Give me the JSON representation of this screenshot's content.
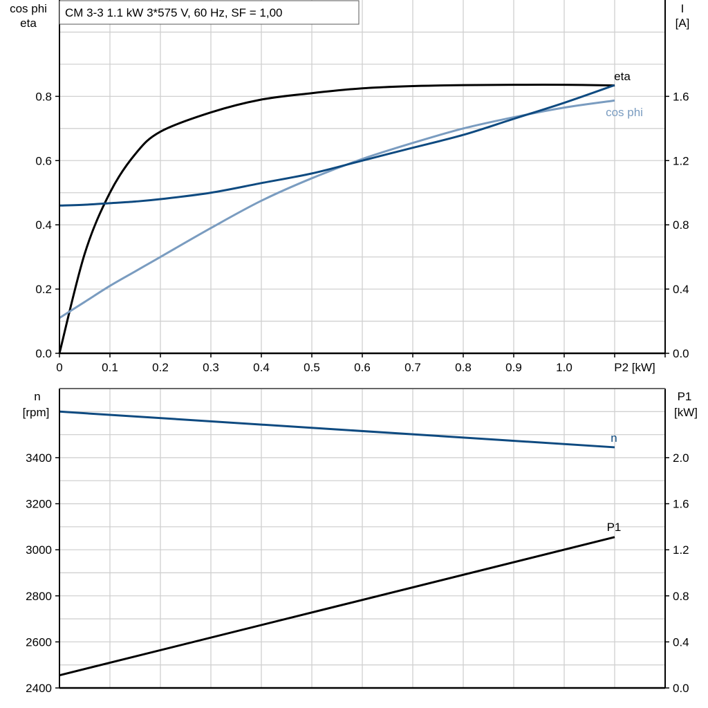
{
  "title": "CM 3-3   1.1 kW   3*575 V, 60 Hz, SF = 1,00",
  "colors": {
    "eta": "#000000",
    "cos_phi": "#7a9cc0",
    "current": "#0e4a80",
    "n": "#0e4a80",
    "p1": "#000000",
    "grid": "#d0d0d0"
  },
  "chart_data": [
    {
      "type": "line",
      "x_label": "P2 [kW]",
      "xlim": [
        0,
        1.2
      ],
      "x_ticks": [
        "0",
        "0.1",
        "0.2",
        "0.3",
        "0.4",
        "0.5",
        "0.6",
        "0.7",
        "0.8",
        "0.9",
        "1.0"
      ],
      "y_left_label_1": "cos phi",
      "y_left_label_2": "eta",
      "y_left_lim": [
        0,
        1.1
      ],
      "y_left_ticks": [
        "0.0",
        "0.2",
        "0.4",
        "0.6",
        "0.8"
      ],
      "y_right_label_1": "I",
      "y_right_label_2": "[A]",
      "y_right_lim": [
        0,
        2.2
      ],
      "y_right_ticks": [
        "0.0",
        "0.4",
        "0.8",
        "1.2",
        "1.6"
      ],
      "grid": true,
      "x": [
        0,
        0.05,
        0.1,
        0.15,
        0.2,
        0.3,
        0.4,
        0.5,
        0.6,
        0.7,
        0.8,
        0.9,
        1.0,
        1.1
      ],
      "series": [
        {
          "name": "eta",
          "axis": "left",
          "values": [
            0,
            0.31,
            0.5,
            0.62,
            0.69,
            0.75,
            0.79,
            0.81,
            0.825,
            0.832,
            0.835,
            0.836,
            0.836,
            0.834
          ]
        },
        {
          "name": "cos phi",
          "axis": "left",
          "values": [
            0.11,
            0.16,
            0.21,
            0.255,
            0.3,
            0.39,
            0.475,
            0.545,
            0.605,
            0.655,
            0.7,
            0.735,
            0.765,
            0.787
          ]
        },
        {
          "name": "",
          "axis": "right",
          "values": [
            0.92,
            0.925,
            0.935,
            0.945,
            0.96,
            1.0,
            1.06,
            1.12,
            1.2,
            1.28,
            1.36,
            1.46,
            1.56,
            1.67
          ]
        }
      ]
    },
    {
      "type": "line",
      "xlim": [
        0,
        1.2
      ],
      "y_left_label_1": "n",
      "y_left_label_2": "[rpm]",
      "y_left_lim": [
        2400,
        3700
      ],
      "y_left_ticks": [
        "2400",
        "2600",
        "2800",
        "3000",
        "3200",
        "3400"
      ],
      "y_right_label_1": "P1",
      "y_right_label_2": "[kW]",
      "y_right_lim": [
        0,
        2.6
      ],
      "y_right_ticks": [
        "0.0",
        "0.4",
        "0.8",
        "1.2",
        "1.6",
        "2.0"
      ],
      "grid": true,
      "x": [
        0,
        1.1
      ],
      "series": [
        {
          "name": "n",
          "axis": "left",
          "values": [
            3600,
            3445
          ]
        },
        {
          "name": "P1",
          "axis": "right",
          "values": [
            0.11,
            1.31
          ]
        }
      ]
    }
  ]
}
